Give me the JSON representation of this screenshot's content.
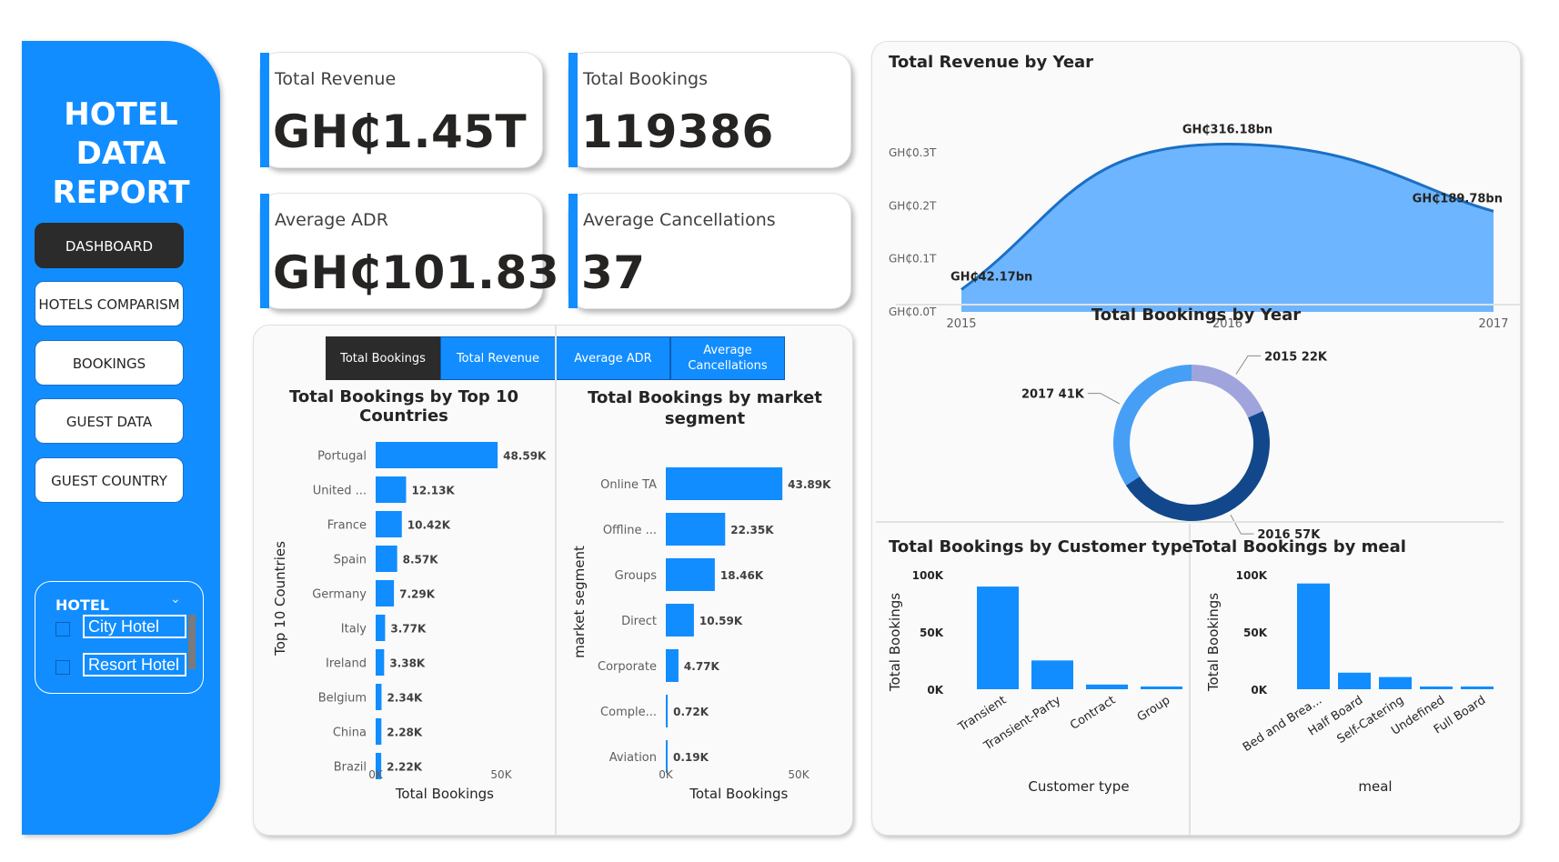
{
  "sidebar": {
    "title_line1": "HOTEL DATA",
    "title_line2": "REPORT",
    "nav": [
      {
        "label": "DASHBOARD",
        "active": true
      },
      {
        "label": "HOTELS COMPARISM",
        "active": false
      },
      {
        "label": "BOOKINGS",
        "active": false
      },
      {
        "label": "GUEST DATA",
        "active": false
      },
      {
        "label": "GUEST COUNTRY",
        "active": false
      }
    ],
    "slicer": {
      "title": "HOTEL",
      "options": [
        "City Hotel",
        "Resort Hotel"
      ]
    }
  },
  "kpis": {
    "total_revenue": {
      "label": "Total Revenue",
      "value": "GH₵1.45T"
    },
    "total_bookings": {
      "label": "Total Bookings",
      "value": "119386"
    },
    "average_adr": {
      "label": "Average ADR",
      "value": "GH₵101.83"
    },
    "average_cancellations": {
      "label": "Average Cancellations",
      "value": "37"
    }
  },
  "tabs": [
    "Total Bookings",
    "Total Revenue",
    "Average ADR",
    "Average Cancellations"
  ],
  "colors": {
    "accent": "#118dff",
    "dark": "#12488b",
    "light": "#a0a4dc",
    "mid": "#479ff5"
  },
  "chart_data": [
    {
      "id": "countries",
      "type": "bar",
      "orientation": "horizontal",
      "title": "Total Bookings by Top 10 Countries",
      "xlabel": "Total Bookings",
      "ylabel": "Top 10 Countries",
      "categories": [
        "Portugal",
        "United ...",
        "France",
        "Spain",
        "Germany",
        "Italy",
        "Ireland",
        "Belgium",
        "China",
        "Brazil"
      ],
      "values": [
        48590,
        12130,
        10420,
        8570,
        7290,
        3770,
        3380,
        2340,
        2280,
        2220
      ],
      "labels": [
        "48.59K",
        "12.13K",
        "10.42K",
        "8.57K",
        "7.29K",
        "3.77K",
        "3.38K",
        "2.34K",
        "2.28K",
        "2.22K"
      ],
      "xticks": [
        "0K",
        "50K"
      ],
      "xlim": [
        0,
        50000
      ]
    },
    {
      "id": "segments",
      "type": "bar",
      "orientation": "horizontal",
      "title": "Total Bookings by market segment",
      "xlabel": "Total Bookings",
      "ylabel": "market segment",
      "categories": [
        "Online TA",
        "Offline ...",
        "Groups",
        "Direct",
        "Corporate",
        "Comple...",
        "Aviation"
      ],
      "values": [
        43890,
        22350,
        18460,
        10590,
        4770,
        720,
        190
      ],
      "labels": [
        "43.89K",
        "22.35K",
        "18.46K",
        "10.59K",
        "4.77K",
        "0.72K",
        "0.19K"
      ],
      "xticks": [
        "0K",
        "50K"
      ],
      "xlim": [
        0,
        50000
      ]
    },
    {
      "id": "revenue_year",
      "type": "area",
      "title": "Total Revenue by Year",
      "x": [
        "2015",
        "2016",
        "2017"
      ],
      "values": [
        42.17,
        316.18,
        189.78
      ],
      "labels": [
        "GH₵42.17bn",
        "GH₵316.18bn",
        "GH₵189.78bn"
      ],
      "yticks": [
        "GH₵0.0T",
        "GH₵0.1T",
        "GH₵0.2T",
        "GH₵0.3T"
      ],
      "ylim": [
        0,
        300
      ]
    },
    {
      "id": "bookings_year",
      "type": "pie",
      "title": "Total Bookings by Year",
      "categories": [
        "2015",
        "2016",
        "2017"
      ],
      "values": [
        22,
        57,
        41
      ],
      "labels": [
        "2015 22K",
        "2016 57K",
        "2017 41K"
      ]
    },
    {
      "id": "customer_type",
      "type": "bar",
      "title": "Total Bookings by Customer type",
      "xlabel": "Customer type",
      "ylabel": "Total Bookings",
      "categories": [
        "Transient",
        "Transient-Party",
        "Contract",
        "Group"
      ],
      "values": [
        89613,
        25124,
        4076,
        577
      ],
      "yticks": [
        "0K",
        "50K",
        "100K"
      ],
      "ylim": [
        0,
        100000
      ]
    },
    {
      "id": "meal",
      "type": "bar",
      "title": "Total Bookings by meal",
      "xlabel": "meal",
      "ylabel": "Total Bookings",
      "categories": [
        "Bed and Brea...",
        "Half Board",
        "Self-Catering",
        "Undefined",
        "Full Board"
      ],
      "values": [
        92310,
        14463,
        10650,
        1169,
        798
      ],
      "yticks": [
        "0K",
        "50K",
        "100K"
      ],
      "ylim": [
        0,
        100000
      ]
    }
  ]
}
